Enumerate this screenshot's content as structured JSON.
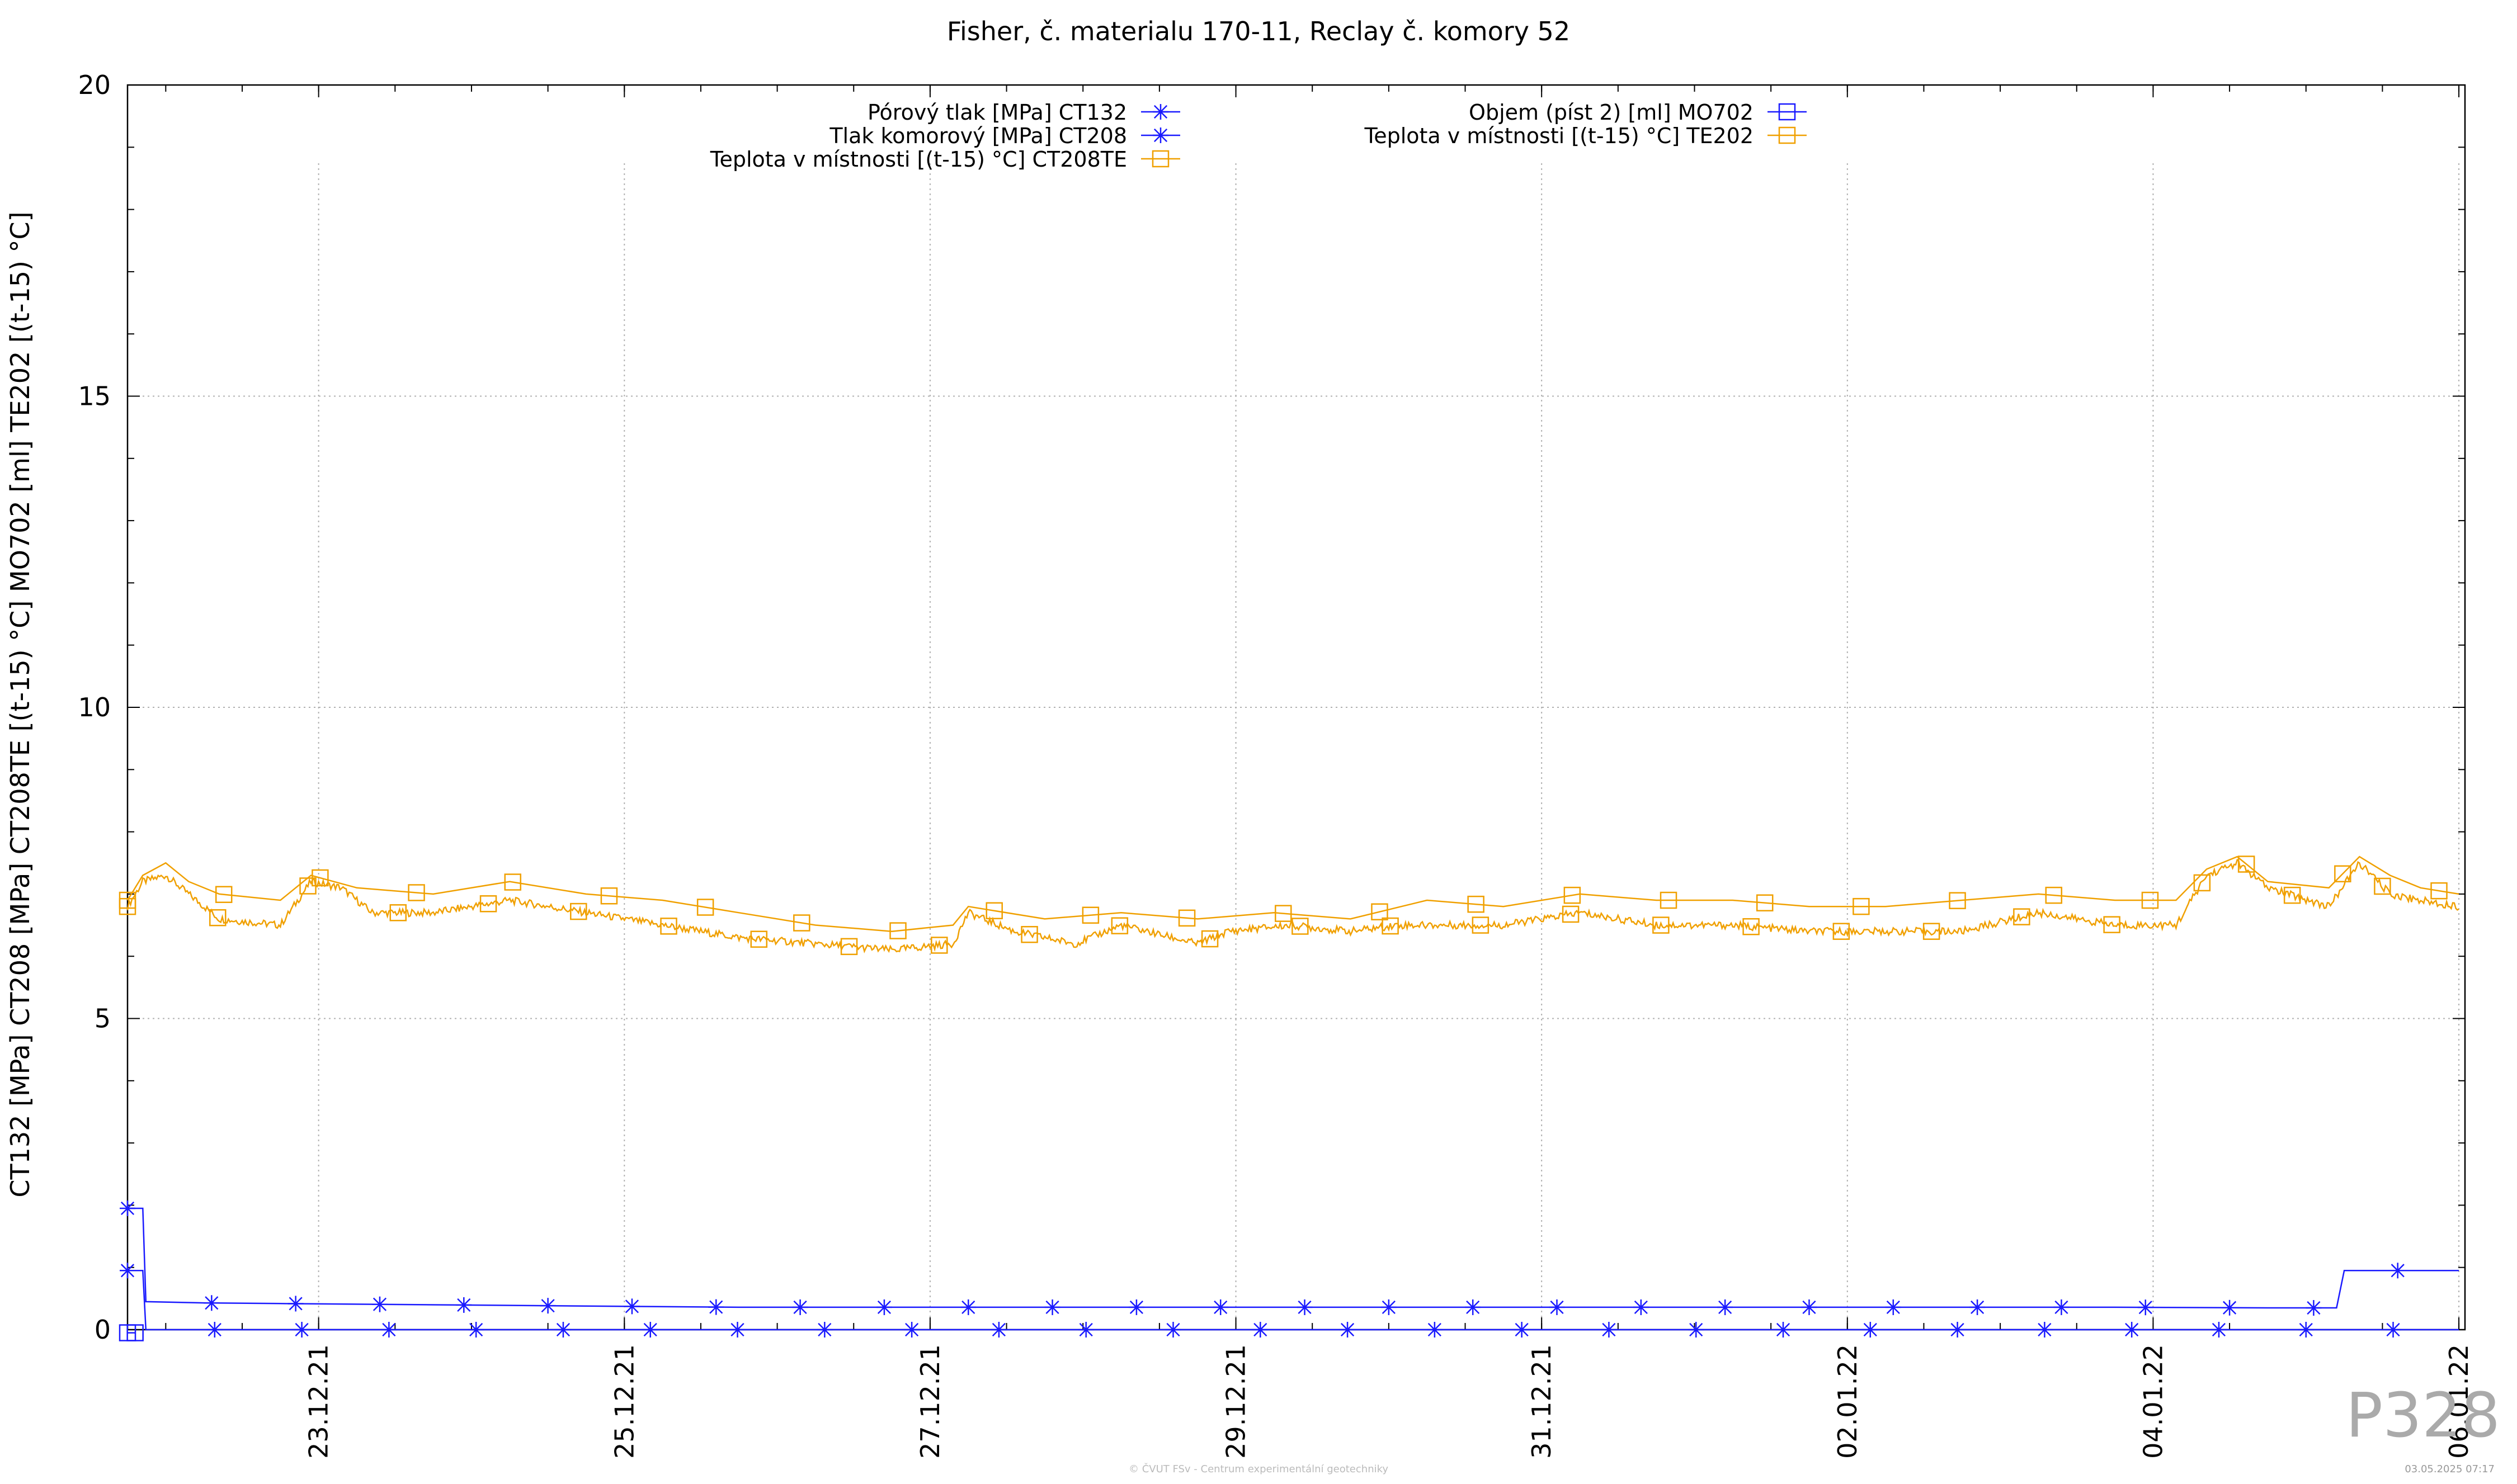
{
  "chart_data": {
    "type": "line",
    "title": "Fisher, č. materialu 170-11, Reclay č. komory 52",
    "ylabel": "CT132 [MPa] CT208 [MPa] CT208TE [(t-15) °C] MO702 [ml] TE202 [(t-15) °C]",
    "xlabel": "",
    "ylim": [
      0,
      20
    ],
    "yticks": [
      0,
      5,
      10,
      15,
      20
    ],
    "xlim": [
      "21.12.21 18:00",
      "06.01.22 01:00"
    ],
    "xticks": [
      "23.12.21",
      "25.12.21",
      "27.12.21",
      "29.12.21",
      "31.12.21",
      "02.01.22",
      "04.01.22",
      "06.01.22"
    ],
    "grid": true,
    "legend_position": "top",
    "series": [
      {
        "name": "Pórový tlak [MPa] CT132",
        "color": "#1a1aff",
        "marker": "star",
        "points": [
          [
            0,
            1.95
          ],
          [
            0.02,
            1.95
          ],
          [
            0.1,
            1.95
          ],
          [
            0.12,
            0.45
          ],
          [
            0.5,
            0.43
          ],
          [
            1.0,
            0.42
          ],
          [
            2.0,
            0.4
          ],
          [
            3.0,
            0.38
          ],
          [
            4.0,
            0.36
          ],
          [
            5.0,
            0.36
          ],
          [
            6.0,
            0.36
          ],
          [
            7.0,
            0.36
          ],
          [
            8.0,
            0.36
          ],
          [
            9.0,
            0.36
          ],
          [
            10.0,
            0.36
          ],
          [
            11.0,
            0.36
          ],
          [
            12.0,
            0.36
          ],
          [
            13.0,
            0.36
          ],
          [
            14.0,
            0.35
          ],
          [
            14.45,
            0.35
          ],
          [
            14.5,
            0.95
          ],
          [
            15.0,
            0.95
          ],
          [
            15.25,
            0.95
          ]
        ]
      },
      {
        "name": "Tlak komorový [MPa] CT208",
        "color": "#1a1aff",
        "marker": "star",
        "points": [
          [
            0,
            0.95
          ],
          [
            0.1,
            0.95
          ],
          [
            0.12,
            0.0
          ],
          [
            15.25,
            0.0
          ]
        ]
      },
      {
        "name": "Teplota v místnosti [(t-15) °C] CT208TE",
        "color": "#f0a000",
        "marker": "square",
        "points": [
          [
            0,
            6.8
          ],
          [
            0.1,
            7.2
          ],
          [
            0.25,
            7.3
          ],
          [
            0.4,
            7.0
          ],
          [
            0.6,
            6.6
          ],
          [
            1.0,
            6.5
          ],
          [
            1.2,
            7.2
          ],
          [
            1.4,
            7.1
          ],
          [
            1.6,
            6.7
          ],
          [
            2.0,
            6.7
          ],
          [
            2.5,
            6.9
          ],
          [
            3.0,
            6.7
          ],
          [
            3.5,
            6.5
          ],
          [
            4.0,
            6.3
          ],
          [
            4.5,
            6.2
          ],
          [
            5.0,
            6.1
          ],
          [
            5.4,
            6.2
          ],
          [
            5.5,
            6.7
          ],
          [
            5.8,
            6.4
          ],
          [
            6.2,
            6.2
          ],
          [
            6.5,
            6.5
          ],
          [
            7.0,
            6.2
          ],
          [
            7.2,
            6.4
          ],
          [
            7.6,
            6.5
          ],
          [
            8.0,
            6.4
          ],
          [
            8.3,
            6.5
          ],
          [
            8.6,
            6.5
          ],
          [
            9.0,
            6.5
          ],
          [
            9.5,
            6.7
          ],
          [
            10.0,
            6.5
          ],
          [
            10.5,
            6.5
          ],
          [
            11.0,
            6.4
          ],
          [
            11.5,
            6.4
          ],
          [
            12.0,
            6.4
          ],
          [
            12.5,
            6.7
          ],
          [
            13.0,
            6.5
          ],
          [
            13.4,
            6.5
          ],
          [
            13.6,
            7.3
          ],
          [
            13.8,
            7.5
          ],
          [
            14.0,
            7.1
          ],
          [
            14.4,
            6.8
          ],
          [
            14.6,
            7.5
          ],
          [
            14.8,
            7.0
          ],
          [
            15.0,
            6.9
          ],
          [
            15.25,
            6.8
          ]
        ]
      },
      {
        "name": "Objem (píst 2) [ml] MO702",
        "color": "#1a1aff",
        "marker": "square",
        "points": [
          [
            0,
            -0.05
          ],
          [
            0.05,
            -0.05
          ]
        ]
      },
      {
        "name": "Teplota v místnosti [(t-15) °C] TE202",
        "color": "#f0a000",
        "marker": "square",
        "points": [
          [
            0,
            6.9
          ],
          [
            0.1,
            7.3
          ],
          [
            0.25,
            7.5
          ],
          [
            0.4,
            7.2
          ],
          [
            0.6,
            7.0
          ],
          [
            1.0,
            6.9
          ],
          [
            1.2,
            7.3
          ],
          [
            1.5,
            7.1
          ],
          [
            2.0,
            7.0
          ],
          [
            2.5,
            7.2
          ],
          [
            3.0,
            7.0
          ],
          [
            3.5,
            6.9
          ],
          [
            4.0,
            6.7
          ],
          [
            4.5,
            6.5
          ],
          [
            5.0,
            6.4
          ],
          [
            5.4,
            6.5
          ],
          [
            5.5,
            6.8
          ],
          [
            6.0,
            6.6
          ],
          [
            6.5,
            6.7
          ],
          [
            7.0,
            6.6
          ],
          [
            7.5,
            6.7
          ],
          [
            8.0,
            6.6
          ],
          [
            8.5,
            6.9
          ],
          [
            9.0,
            6.8
          ],
          [
            9.5,
            7.0
          ],
          [
            10.0,
            6.9
          ],
          [
            10.5,
            6.9
          ],
          [
            11.0,
            6.8
          ],
          [
            11.5,
            6.8
          ],
          [
            12.0,
            6.9
          ],
          [
            12.5,
            7.0
          ],
          [
            13.0,
            6.9
          ],
          [
            13.4,
            6.9
          ],
          [
            13.6,
            7.4
          ],
          [
            13.8,
            7.6
          ],
          [
            14.0,
            7.2
          ],
          [
            14.4,
            7.1
          ],
          [
            14.6,
            7.6
          ],
          [
            14.8,
            7.3
          ],
          [
            15.0,
            7.1
          ],
          [
            15.25,
            7.0
          ]
        ]
      }
    ],
    "x_unit_note": "x values in days from 21.12.21 18:00",
    "footer_center": "© ČVUT FSv - Centrum experimentální geotechniky",
    "footer_right": "03.05.2025 07:17",
    "watermark": "P328"
  }
}
